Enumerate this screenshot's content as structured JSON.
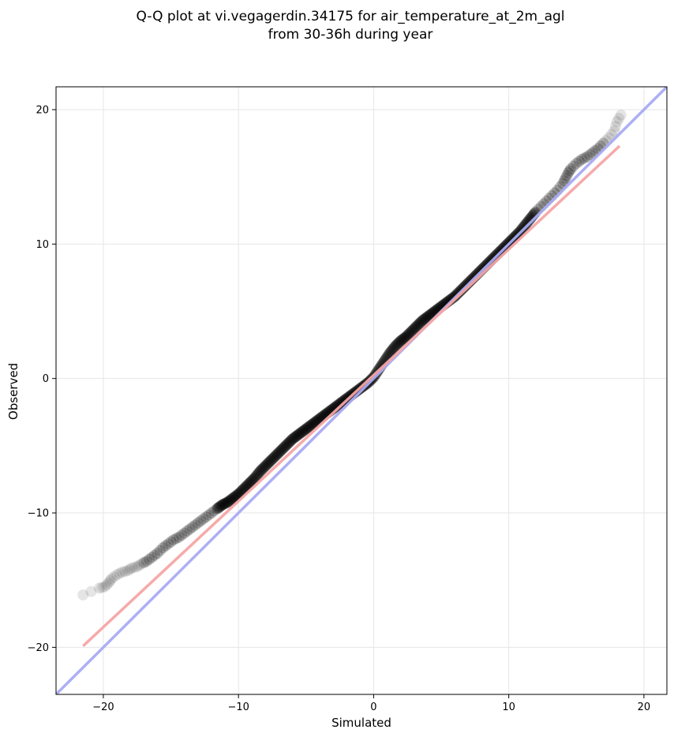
{
  "chart_data": {
    "type": "scatter",
    "title": "Q-Q plot at vi.vegagerdin.34175 for air_temperature_at_2m_agl",
    "subtitle": "from 30-36h during year",
    "xlabel": "Simulated",
    "ylabel": "Observed",
    "xlim": [
      -23.5,
      21.7
    ],
    "ylim": [
      -23.5,
      21.7
    ],
    "xticks": [
      -20,
      -10,
      0,
      10,
      20
    ],
    "yticks": [
      -20,
      -10,
      0,
      10,
      20
    ],
    "xtick_labels": [
      "−20",
      "−10",
      "0",
      "10",
      "20"
    ],
    "ytick_labels": [
      "−20",
      "−10",
      "0",
      "10",
      "20"
    ],
    "grid": true,
    "colors": {
      "points": "#000000",
      "identity_line": "#a9abf3",
      "fit_line": "#f6a5a5"
    },
    "reference_lines": [
      {
        "role": "identity",
        "x": [
          -23.5,
          21.7
        ],
        "y": [
          -23.5,
          21.7
        ]
      },
      {
        "role": "fit",
        "x": [
          -21.5,
          18.2
        ],
        "y": [
          -19.9,
          17.3
        ]
      }
    ],
    "quantile_points": {
      "x": [
        -21.5,
        -20.3,
        -19.9,
        -19.6,
        -19.4,
        -19.0,
        -18.6,
        -18.2,
        -17.9,
        -17.5,
        -17.2,
        -16.8,
        -16.4,
        -16.0,
        -15.6,
        -15.2,
        -14.8,
        -14.4,
        -14.0,
        -13.6,
        -13.2,
        -12.8,
        -12.4,
        -12.0,
        -11.6,
        -11.2,
        -10.8,
        -10.4,
        -10.0,
        -9.6,
        -9.2,
        -8.8,
        -8.4,
        -8.0,
        -7.6,
        -7.2,
        -6.8,
        -6.4,
        -6.0,
        -5.6,
        -5.2,
        -4.8,
        -4.4,
        -4.0,
        -3.6,
        -3.2,
        -2.8,
        -2.4,
        -2.0,
        -1.6,
        -1.2,
        -0.8,
        -0.4,
        0.0,
        0.4,
        0.8,
        1.2,
        1.6,
        2.0,
        2.4,
        2.8,
        3.2,
        3.6,
        4.0,
        4.4,
        4.8,
        5.2,
        5.6,
        6.0,
        6.4,
        6.8,
        7.2,
        7.6,
        8.0,
        8.4,
        8.8,
        9.2,
        9.6,
        10.0,
        10.4,
        10.8,
        11.2,
        11.6,
        12.0,
        12.4,
        12.8,
        13.2,
        13.6,
        14.0,
        14.2,
        14.4,
        14.6,
        15.0,
        15.4,
        15.8,
        16.2,
        16.6,
        17.0,
        17.4,
        17.8,
        18.0,
        18.3
      ],
      "y": [
        -16.1,
        -15.6,
        -15.5,
        -15.2,
        -14.9,
        -14.6,
        -14.4,
        -14.3,
        -14.1,
        -14.0,
        -13.8,
        -13.6,
        -13.3,
        -13.0,
        -12.6,
        -12.3,
        -12.0,
        -11.8,
        -11.5,
        -11.2,
        -10.9,
        -10.6,
        -10.3,
        -10.0,
        -9.7,
        -9.4,
        -9.2,
        -8.9,
        -8.6,
        -8.2,
        -7.8,
        -7.4,
        -6.9,
        -6.5,
        -6.1,
        -5.7,
        -5.3,
        -4.9,
        -4.5,
        -4.2,
        -3.9,
        -3.6,
        -3.3,
        -3.0,
        -2.7,
        -2.4,
        -2.1,
        -1.8,
        -1.5,
        -1.2,
        -0.9,
        -0.6,
        -0.3,
        0.1,
        0.7,
        1.3,
        1.9,
        2.4,
        2.8,
        3.1,
        3.5,
        3.9,
        4.3,
        4.6,
        4.9,
        5.2,
        5.5,
        5.8,
        6.1,
        6.5,
        6.9,
        7.3,
        7.7,
        8.1,
        8.5,
        8.9,
        9.3,
        9.7,
        10.1,
        10.5,
        10.9,
        11.4,
        11.9,
        12.4,
        12.8,
        13.2,
        13.6,
        14.0,
        14.5,
        14.9,
        15.3,
        15.6,
        16.0,
        16.3,
        16.5,
        16.8,
        17.1,
        17.5,
        17.9,
        18.4,
        19.1,
        19.6
      ]
    }
  }
}
